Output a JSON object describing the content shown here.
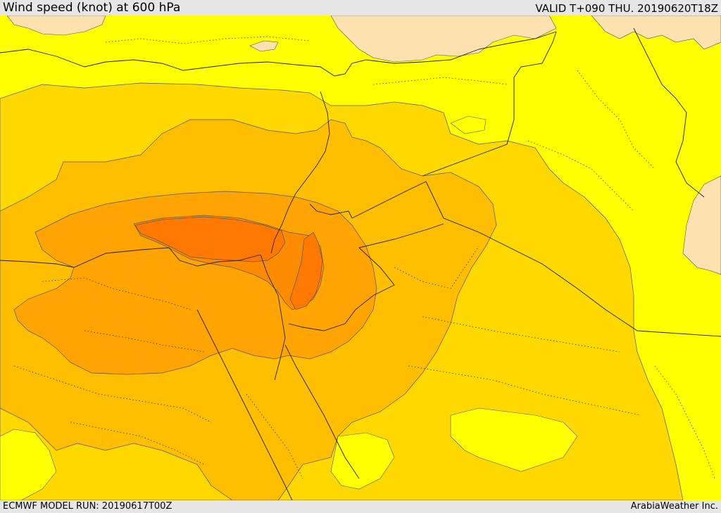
{
  "header": {
    "title": "Wind speed (knot) at 600 hPa",
    "valid": "VALID T+090 THU. 20190620T18Z"
  },
  "footer": {
    "run": "ECMWF MODEL RUN: 20190617T00Z",
    "credit": "ArabiaWeather Inc."
  },
  "legend_colors": {
    "level_1": "#ffffb0",
    "level_2": "#ffff00",
    "level_3": "#ffd800",
    "level_4": "#ffbe00",
    "level_5": "#ffa400",
    "level_6": "#ff8c00",
    "level_7": "#ff7800",
    "land_light": "#fde2b0"
  }
}
